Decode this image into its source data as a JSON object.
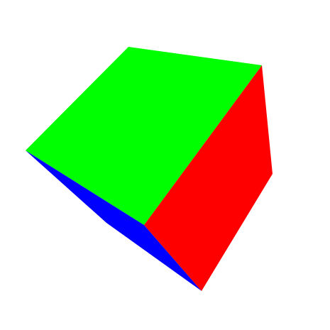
{
  "scene": {
    "background": "#ffffff",
    "object": "cube",
    "faces": {
      "top": {
        "color": "#00ff00"
      },
      "right": {
        "color": "#ff0000"
      },
      "left": {
        "color": "#0000ff"
      }
    }
  }
}
